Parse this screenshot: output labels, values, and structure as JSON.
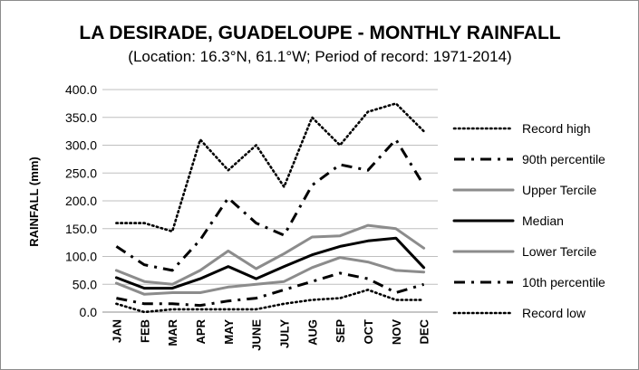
{
  "chart_data": {
    "type": "line",
    "title": "LA DESIRADE, GUADELOUPE - MONTHLY RAINFALL",
    "subtitle": "(Location: 16.3°N, 61.1°W; Period of record: 1971-2014)",
    "xlabel": "",
    "ylabel": "RAINFALL (mm)",
    "ylim": [
      0,
      400
    ],
    "yticks": [
      "0.0",
      "50.0",
      "100.0",
      "150.0",
      "200.0",
      "250.0",
      "300.0",
      "350.0",
      "400.0"
    ],
    "ytick_values": [
      0,
      50,
      100,
      150,
      200,
      250,
      300,
      350,
      400
    ],
    "grid": true,
    "legend": "right",
    "categories": [
      "JAN",
      "FEB",
      "MAR",
      "APR",
      "MAY",
      "JUNE",
      "JULY",
      "AUG",
      "SEP",
      "OCT",
      "NOV",
      "DEC"
    ],
    "series": [
      {
        "name": "Record high",
        "style": "dotted",
        "color": "#000000",
        "values": [
          160,
          160,
          145,
          310,
          255,
          300,
          225,
          350,
          300,
          360,
          375,
          325
        ]
      },
      {
        "name": "90th percentile",
        "style": "dashdot",
        "color": "#000000",
        "values": [
          118,
          85,
          75,
          130,
          205,
          160,
          138,
          228,
          265,
          255,
          310,
          228
        ]
      },
      {
        "name": "Upper Tercile",
        "style": "solid-gray",
        "color": "#8c8c8c",
        "values": [
          75,
          55,
          50,
          75,
          110,
          78,
          105,
          135,
          137,
          156,
          150,
          115
        ]
      },
      {
        "name": "Median",
        "style": "solid-black",
        "color": "#000000",
        "values": [
          62,
          43,
          43,
          60,
          82,
          60,
          82,
          103,
          118,
          128,
          133,
          80
        ]
      },
      {
        "name": "Lower Tercile",
        "style": "solid-gray",
        "color": "#8c8c8c",
        "values": [
          52,
          32,
          35,
          35,
          45,
          50,
          55,
          80,
          98,
          90,
          75,
          72
        ]
      },
      {
        "name": "10th percentile",
        "style": "dashdot",
        "color": "#000000",
        "values": [
          25,
          15,
          15,
          12,
          20,
          25,
          40,
          55,
          70,
          60,
          35,
          50
        ]
      },
      {
        "name": "Record low",
        "style": "dotted",
        "color": "#000000",
        "values": [
          15,
          0,
          5,
          5,
          5,
          5,
          15,
          22,
          25,
          40,
          22,
          22
        ]
      }
    ]
  }
}
